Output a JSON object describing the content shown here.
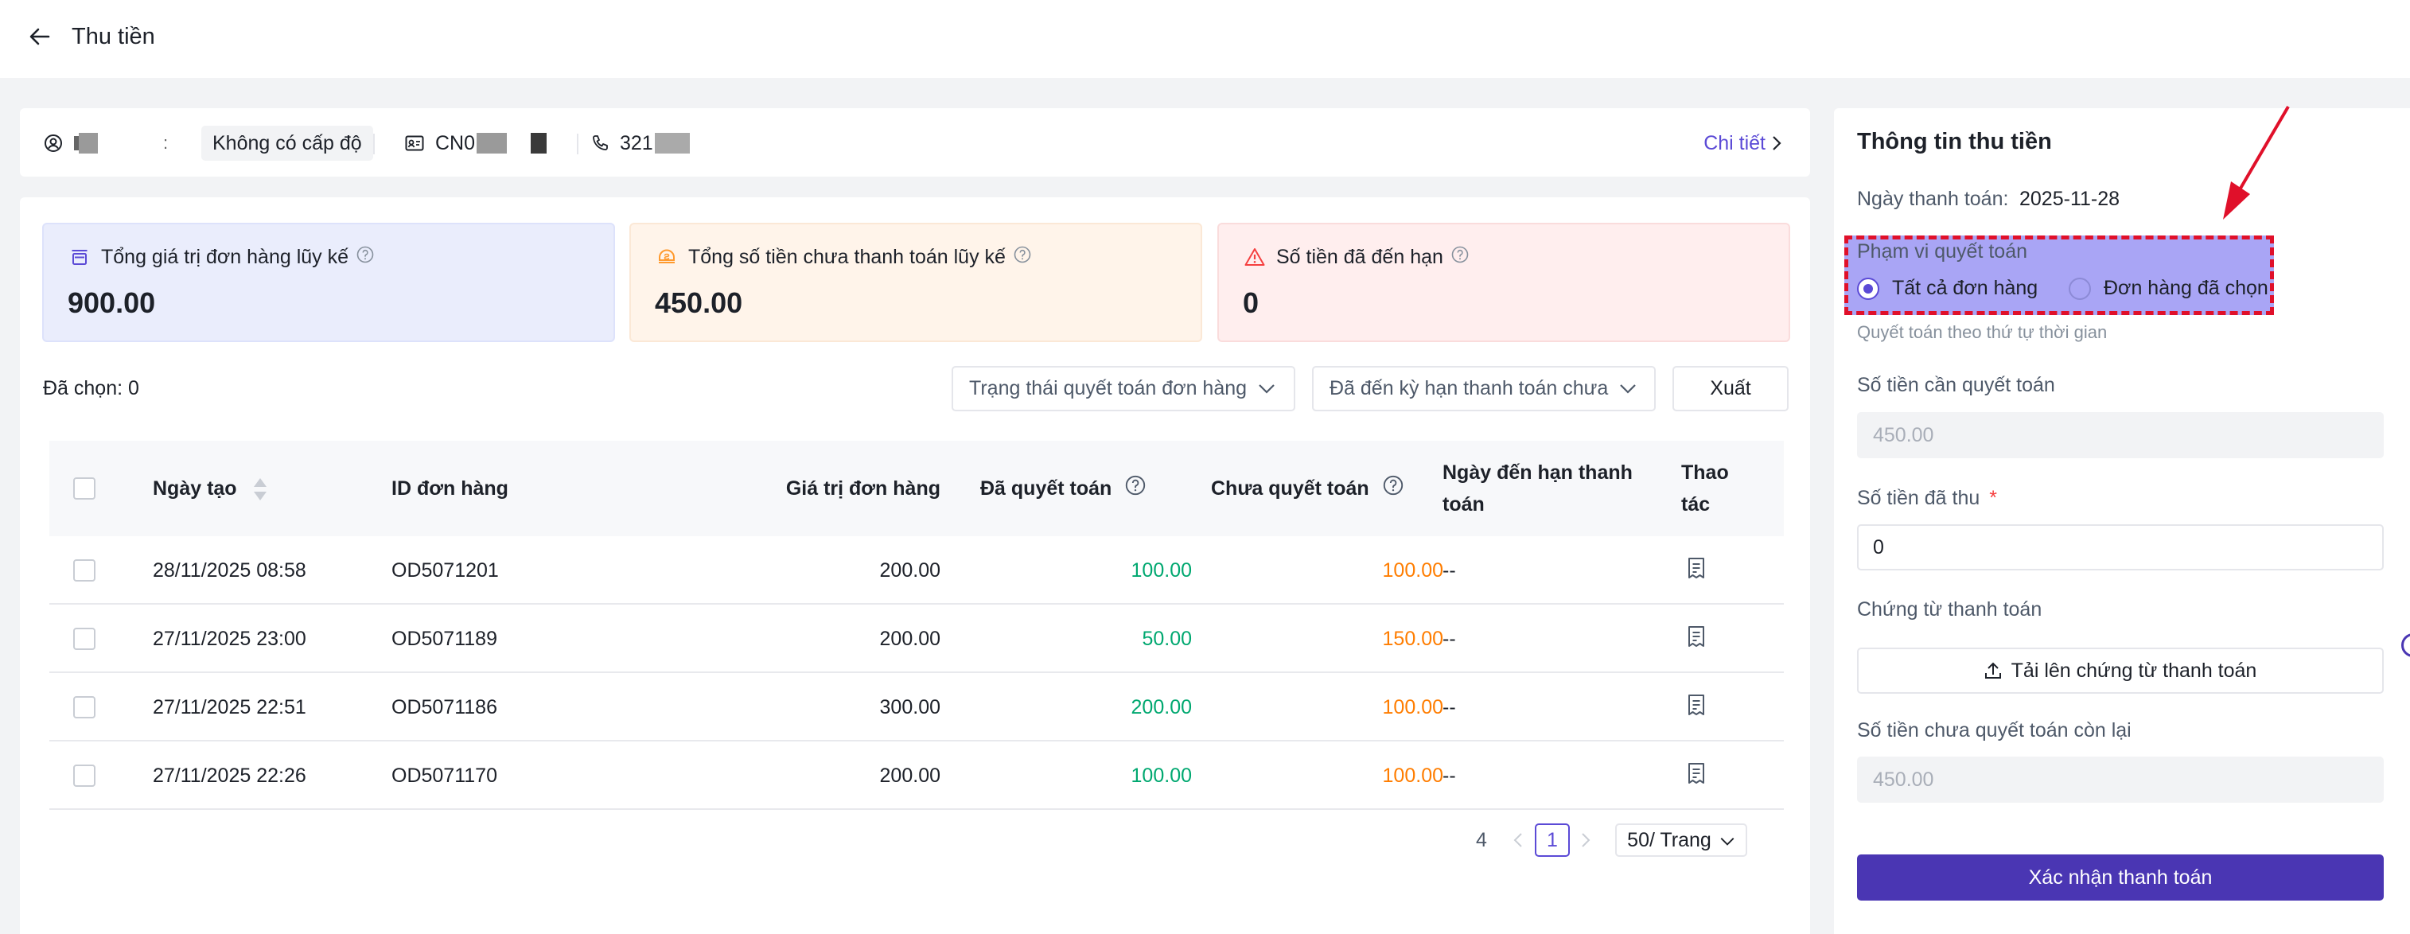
{
  "header": {
    "title": "Thu tiền",
    "back_icon": "arrow-left-icon"
  },
  "customer": {
    "name_prefix": "",
    "name_suffix": "",
    "level": "Không có cấp độ",
    "code_prefix": "CN0",
    "phone_prefix": "321",
    "detail_link": "Chi tiết"
  },
  "summary": {
    "total_order_value": {
      "label": "Tổng giá trị đơn hàng lũy kế",
      "value": "900.00",
      "icon": "box-icon"
    },
    "unpaid_total": {
      "label": "Tổng số tiền chưa thanh toán lũy kế",
      "value": "450.00",
      "icon": "wallet-icon"
    },
    "overdue": {
      "label": "Số tiền đã đến hạn",
      "value": "0",
      "icon": "warning-icon"
    }
  },
  "toolbar": {
    "selected": "Đã chọn: 0",
    "filter_status": "Trạng thái quyết toán đơn hàng",
    "filter_due": "Đã đến kỳ hạn thanh toán chưa",
    "export_label": "Xuất"
  },
  "table": {
    "headers": {
      "created": "Ngày tạo",
      "order_id": "ID đơn hàng",
      "order_value": "Giá trị đơn hàng",
      "settled": "Đã quyết toán",
      "unsettled": "Chưa quyết toán",
      "due_date_line1": "Ngày đến hạn thanh",
      "due_date_line2": "toán",
      "actions_line1": "Thao",
      "actions_line2": "tác"
    },
    "rows": [
      {
        "created": "28/11/2025 08:58",
        "order_id": "OD5071201",
        "order_value": "200.00",
        "settled": "100.00",
        "unsettled": "100.00",
        "due": "--"
      },
      {
        "created": "27/11/2025 23:00",
        "order_id": "OD5071189",
        "order_value": "200.00",
        "settled": "50.00",
        "unsettled": "150.00",
        "due": "--"
      },
      {
        "created": "27/11/2025 22:51",
        "order_id": "OD5071186",
        "order_value": "300.00",
        "settled": "200.00",
        "unsettled": "100.00",
        "due": "--"
      },
      {
        "created": "27/11/2025 22:26",
        "order_id": "OD5071170",
        "order_value": "200.00",
        "settled": "100.00",
        "unsettled": "100.00",
        "due": "--"
      }
    ]
  },
  "pagination": {
    "total": "4",
    "current": "1",
    "page_size": "50/ Trang"
  },
  "payment": {
    "title": "Thông tin thu tiền",
    "date_label": "Ngày thanh toán:",
    "date_value": "2025-11-28",
    "scope_label": "Phạm vi quyết toán",
    "scope_all": "Tất cả đơn hàng",
    "scope_selected": "Đơn hàng đã chọn",
    "scope_hint": "Quyết toán theo thứ tự thời gian",
    "amount_due_label": "Số tiền cần quyết toán",
    "amount_due_value": "450.00",
    "received_label": "Số tiền đã thu",
    "received_value": "0",
    "voucher_label": "Chứng từ thanh toán",
    "upload_label": "Tải lên chứng từ thanh toán",
    "remaining_label": "Số tiền chưa quyết toán còn lại",
    "remaining_value": "450.00",
    "confirm_label": "Xác nhận thanh toán"
  },
  "colors": {
    "accent": "#5b4ad6",
    "primary_button": "#4a36b3",
    "settled": "#00a870",
    "unsettled": "#ff7d00",
    "annotation": "#e0102a"
  }
}
